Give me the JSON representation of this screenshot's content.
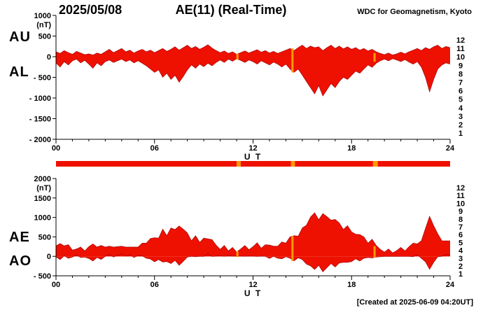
{
  "header": {
    "date": "2025/05/08",
    "title": "AE(11) (Real-Time)",
    "source": "WDC for Geomagnetism, Kyoto"
  },
  "footer": {
    "created_note": "[Created at 2025-06-09 04:20UT]"
  },
  "colors": {
    "data_fill": "#ee1000",
    "data_edge": "#990000",
    "axis": "#000000",
    "event_orange": "#ff9900"
  },
  "station_scale": {
    "values": [
      12,
      11,
      10,
      9,
      8,
      7,
      6,
      5,
      4,
      3,
      2,
      1
    ],
    "colors": [
      "#ff0000",
      "#f43b2c",
      "#ff9900",
      "#f0e130",
      "#00b2b2",
      "#22ccee",
      "#2222ee",
      "#ee22ee",
      "#8833cc",
      "#888888",
      "#333333",
      "#cccccc"
    ]
  },
  "station_bar": {
    "base_color": "#ee1000",
    "orange_color": "#ff9900",
    "orange_segments_ut": [
      [
        11.0,
        11.25
      ],
      [
        14.3,
        14.55
      ],
      [
        19.3,
        19.6
      ]
    ]
  },
  "chart_data": [
    {
      "type": "area",
      "name": "AU-AL-panel",
      "xlabel": "U T",
      "ylabel": "(nT)",
      "xlim": [
        0,
        24
      ],
      "ylim": [
        -2000,
        1000
      ],
      "yticks": [
        1000,
        500,
        0,
        -500,
        -1000,
        -1500,
        -2000
      ],
      "ytick_labels": [
        "1000",
        "500",
        "0",
        "- 500",
        "- 1000",
        "- 1500",
        "- 2000"
      ],
      "xticks": [
        0,
        6,
        12,
        18,
        24
      ],
      "xtick_labels": [
        "00",
        "06",
        "12",
        "18",
        "24"
      ],
      "x_start": 0,
      "x_step": 0.25,
      "legend_position": "right",
      "series": [
        {
          "name": "AU",
          "values": [
            120,
            80,
            150,
            100,
            60,
            130,
            90,
            50,
            70,
            40,
            90,
            60,
            120,
            180,
            100,
            150,
            200,
            120,
            160,
            90,
            140,
            180,
            120,
            160,
            100,
            150,
            200,
            130,
            180,
            240,
            160,
            220,
            280,
            200,
            250,
            180,
            230,
            290,
            210,
            150,
            100,
            140,
            80,
            120,
            60,
            100,
            140,
            90,
            130,
            170,
            110,
            150,
            90,
            130,
            80,
            120,
            160,
            200,
            150,
            220,
            280,
            200,
            260,
            220,
            240,
            150,
            220,
            280,
            200,
            260,
            190,
            240,
            180,
            220,
            160,
            200,
            140,
            180,
            120,
            80,
            50,
            90,
            40,
            70,
            110,
            70,
            120,
            160,
            200,
            150,
            220,
            180,
            240,
            280,
            200,
            250,
            220
          ]
        },
        {
          "name": "AL",
          "values": [
            -150,
            -250,
            -120,
            -200,
            -100,
            -60,
            -150,
            -90,
            -180,
            -280,
            -150,
            -220,
            -120,
            -80,
            -140,
            -100,
            -60,
            -120,
            -80,
            -150,
            -100,
            -160,
            -220,
            -300,
            -380,
            -320,
            -500,
            -400,
            -550,
            -450,
            -620,
            -480,
            -320,
            -200,
            -280,
            -180,
            -240,
            -160,
            -220,
            -140,
            -80,
            -140,
            -60,
            -110,
            -50,
            -90,
            -140,
            -80,
            -120,
            -180,
            -100,
            -150,
            -200,
            -130,
            -180,
            -250,
            -180,
            -300,
            -380,
            -300,
            -450,
            -600,
            -750,
            -900,
            -700,
            -950,
            -800,
            -650,
            -750,
            -600,
            -500,
            -550,
            -450,
            -350,
            -400,
            -300,
            -200,
            -260,
            -160,
            -100,
            -60,
            -100,
            -50,
            -80,
            -120,
            -70,
            -130,
            -180,
            -120,
            -250,
            -500,
            -850,
            -550,
            -300,
            -200,
            -150,
            -180
          ]
        }
      ],
      "event_marks": [
        {
          "ut": 11.05,
          "v1": 70,
          "v2": -70
        },
        {
          "ut": 14.4,
          "v1": 200,
          "v2": -380
        },
        {
          "ut": 19.4,
          "v1": 90,
          "v2": -120
        }
      ]
    },
    {
      "type": "area",
      "name": "AE-AO-panel",
      "xlabel": "U T",
      "ylabel": "(nT)",
      "xlim": [
        0,
        24
      ],
      "ylim": [
        -500,
        2000
      ],
      "yticks": [
        2000,
        1500,
        1000,
        500,
        0,
        -500
      ],
      "ytick_labels": [
        "2000",
        "1500",
        "1000",
        "500",
        "0",
        "- 500"
      ],
      "xticks": [
        0,
        6,
        12,
        18,
        24
      ],
      "xtick_labels": [
        "00",
        "06",
        "12",
        "18",
        "24"
      ],
      "x_start": 0,
      "x_step": 0.25,
      "legend_position": "right",
      "series": [
        {
          "name": "AE",
          "values": [
            270,
            330,
            270,
            300,
            160,
            190,
            240,
            140,
            250,
            320,
            240,
            280,
            240,
            260,
            240,
            250,
            260,
            240,
            240,
            240,
            240,
            340,
            340,
            460,
            480,
            470,
            700,
            530,
            730,
            690,
            780,
            700,
            600,
            400,
            530,
            360,
            470,
            450,
            430,
            290,
            180,
            280,
            140,
            230,
            110,
            190,
            280,
            170,
            250,
            350,
            210,
            300,
            290,
            260,
            260,
            370,
            340,
            500,
            530,
            520,
            730,
            800,
            1010,
            1120,
            940,
            1100,
            1020,
            930,
            950,
            860,
            690,
            790,
            630,
            570,
            560,
            500,
            340,
            440,
            280,
            180,
            110,
            190,
            90,
            150,
            230,
            140,
            250,
            340,
            320,
            400,
            720,
            1030,
            790,
            580,
            400,
            400,
            400
          ]
        },
        {
          "name": "AO",
          "values": [
            -15,
            -85,
            15,
            -50,
            -20,
            35,
            -30,
            -20,
            -55,
            -120,
            -30,
            -80,
            0,
            50,
            -20,
            25,
            70,
            0,
            40,
            -30,
            20,
            10,
            -50,
            -70,
            -140,
            -85,
            -150,
            -135,
            -185,
            -105,
            -230,
            -130,
            -20,
            0,
            -15,
            0,
            -5,
            65,
            -5,
            5,
            10,
            0,
            10,
            5,
            5,
            5,
            0,
            5,
            5,
            -5,
            5,
            0,
            -55,
            0,
            -50,
            -65,
            -10,
            -50,
            -115,
            -40,
            -85,
            -200,
            -245,
            -340,
            -230,
            -400,
            -290,
            -185,
            -275,
            -170,
            -155,
            -155,
            -135,
            -65,
            -120,
            -50,
            -30,
            -40,
            -20,
            -10,
            -5,
            -5,
            -5,
            -5,
            -5,
            0,
            -5,
            -10,
            40,
            -50,
            -140,
            -335,
            -155,
            -10,
            0,
            50,
            20
          ]
        }
      ],
      "event_marks": [
        {
          "ut": 11.05,
          "v1": 130,
          "v2": -20
        },
        {
          "ut": 14.4,
          "v1": 520,
          "v2": -120
        },
        {
          "ut": 19.4,
          "v1": 260,
          "v2": -30
        }
      ]
    }
  ]
}
